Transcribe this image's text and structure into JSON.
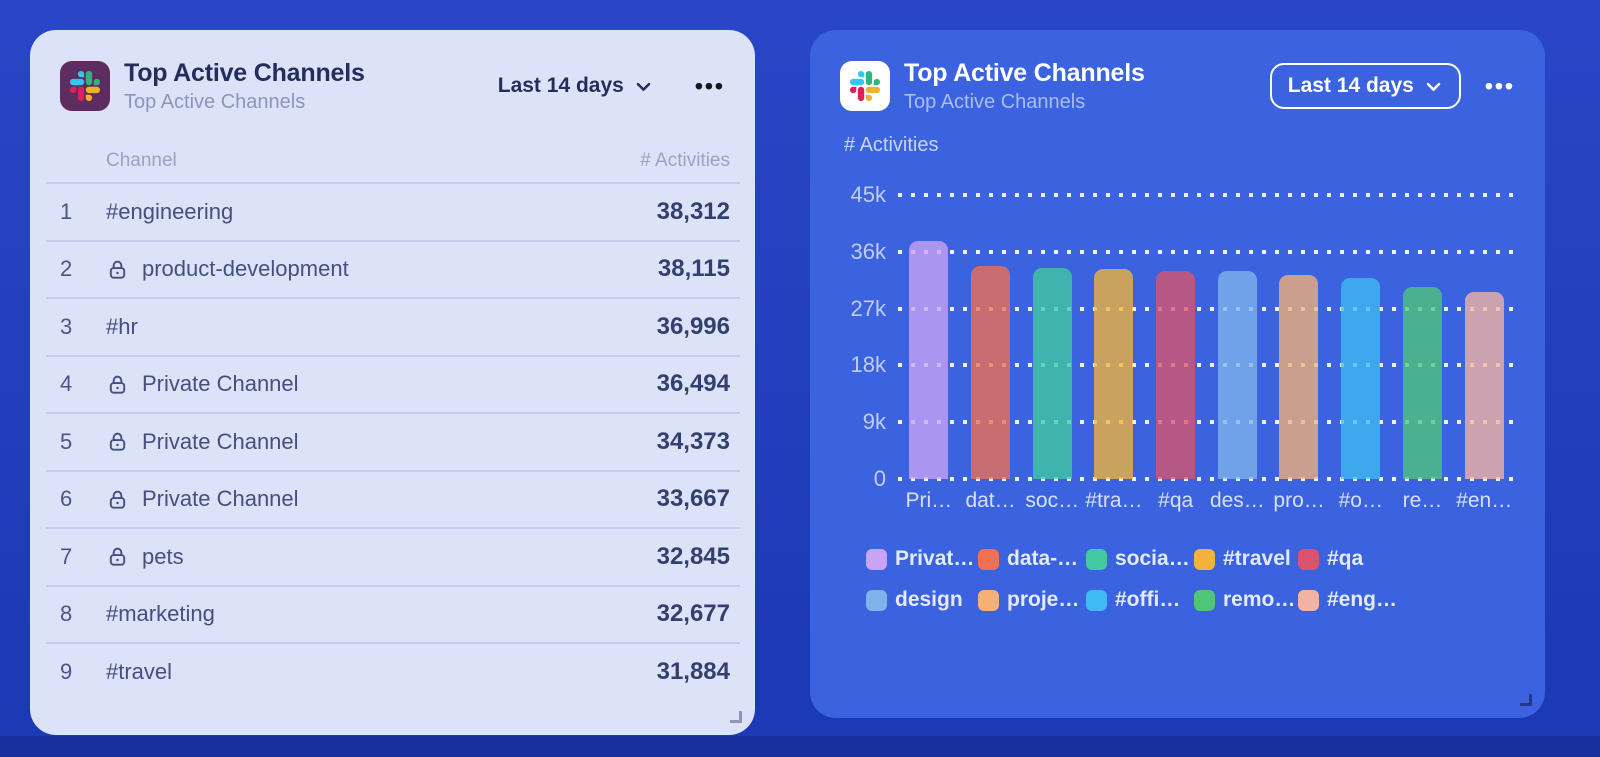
{
  "left_card": {
    "title": "Top Active Channels",
    "subtitle": "Top Active Channels",
    "range_label": "Last 14 days",
    "menu_label": "•••",
    "columns": {
      "channel": "Channel",
      "activities": "# Activities"
    },
    "rows": [
      {
        "rank": "1",
        "name": "#engineering",
        "value": "38,312",
        "private": false
      },
      {
        "rank": "2",
        "name": "product-development",
        "value": "38,115",
        "private": true
      },
      {
        "rank": "3",
        "name": "#hr",
        "value": "36,996",
        "private": false
      },
      {
        "rank": "4",
        "name": "Private Channel",
        "value": "36,494",
        "private": true
      },
      {
        "rank": "5",
        "name": "Private Channel",
        "value": "34,373",
        "private": true
      },
      {
        "rank": "6",
        "name": "Private Channel",
        "value": "33,667",
        "private": true
      },
      {
        "rank": "7",
        "name": "pets",
        "value": "32,845",
        "private": true
      },
      {
        "rank": "8",
        "name": "#marketing",
        "value": "32,677",
        "private": false
      },
      {
        "rank": "9",
        "name": "#travel",
        "value": "31,884",
        "private": false
      }
    ]
  },
  "right_card": {
    "title": "Top Active Channels",
    "subtitle": "Top Active Channels",
    "range_label": "Last 14 days",
    "menu_label": "•••",
    "axis_label": "# Activities"
  },
  "chart_data": {
    "type": "bar",
    "title": "Top Active Channels",
    "ylabel": "# Activities",
    "xlabel": "",
    "ylim": [
      0,
      45000
    ],
    "ytick_labels": [
      "0",
      "9k",
      "18k",
      "27k",
      "36k",
      "45k"
    ],
    "grid": "dotted horizontal gridlines",
    "legend_position": "bottom",
    "categories": [
      "Pri…",
      "dat…",
      "soc…",
      "#tra…",
      "#qa",
      "des…",
      "pro…",
      "#o…",
      "re…",
      "#en…"
    ],
    "legend": [
      "Privat…",
      "data-…",
      "socia…",
      "#travel",
      "#qa",
      "design",
      "proje…",
      "#offi…",
      "remo…",
      "#eng…"
    ],
    "values": [
      37700,
      33800,
      33400,
      33200,
      33000,
      32900,
      32400,
      31800,
      30500,
      29600
    ],
    "colors": [
      "#C9A4F6",
      "#EF7052",
      "#41C9A2",
      "#F2B33C",
      "#D8536B",
      "#7FB3EC",
      "#F4B077",
      "#3FBBF2",
      "#50C578",
      "#F3B3A2"
    ]
  }
}
